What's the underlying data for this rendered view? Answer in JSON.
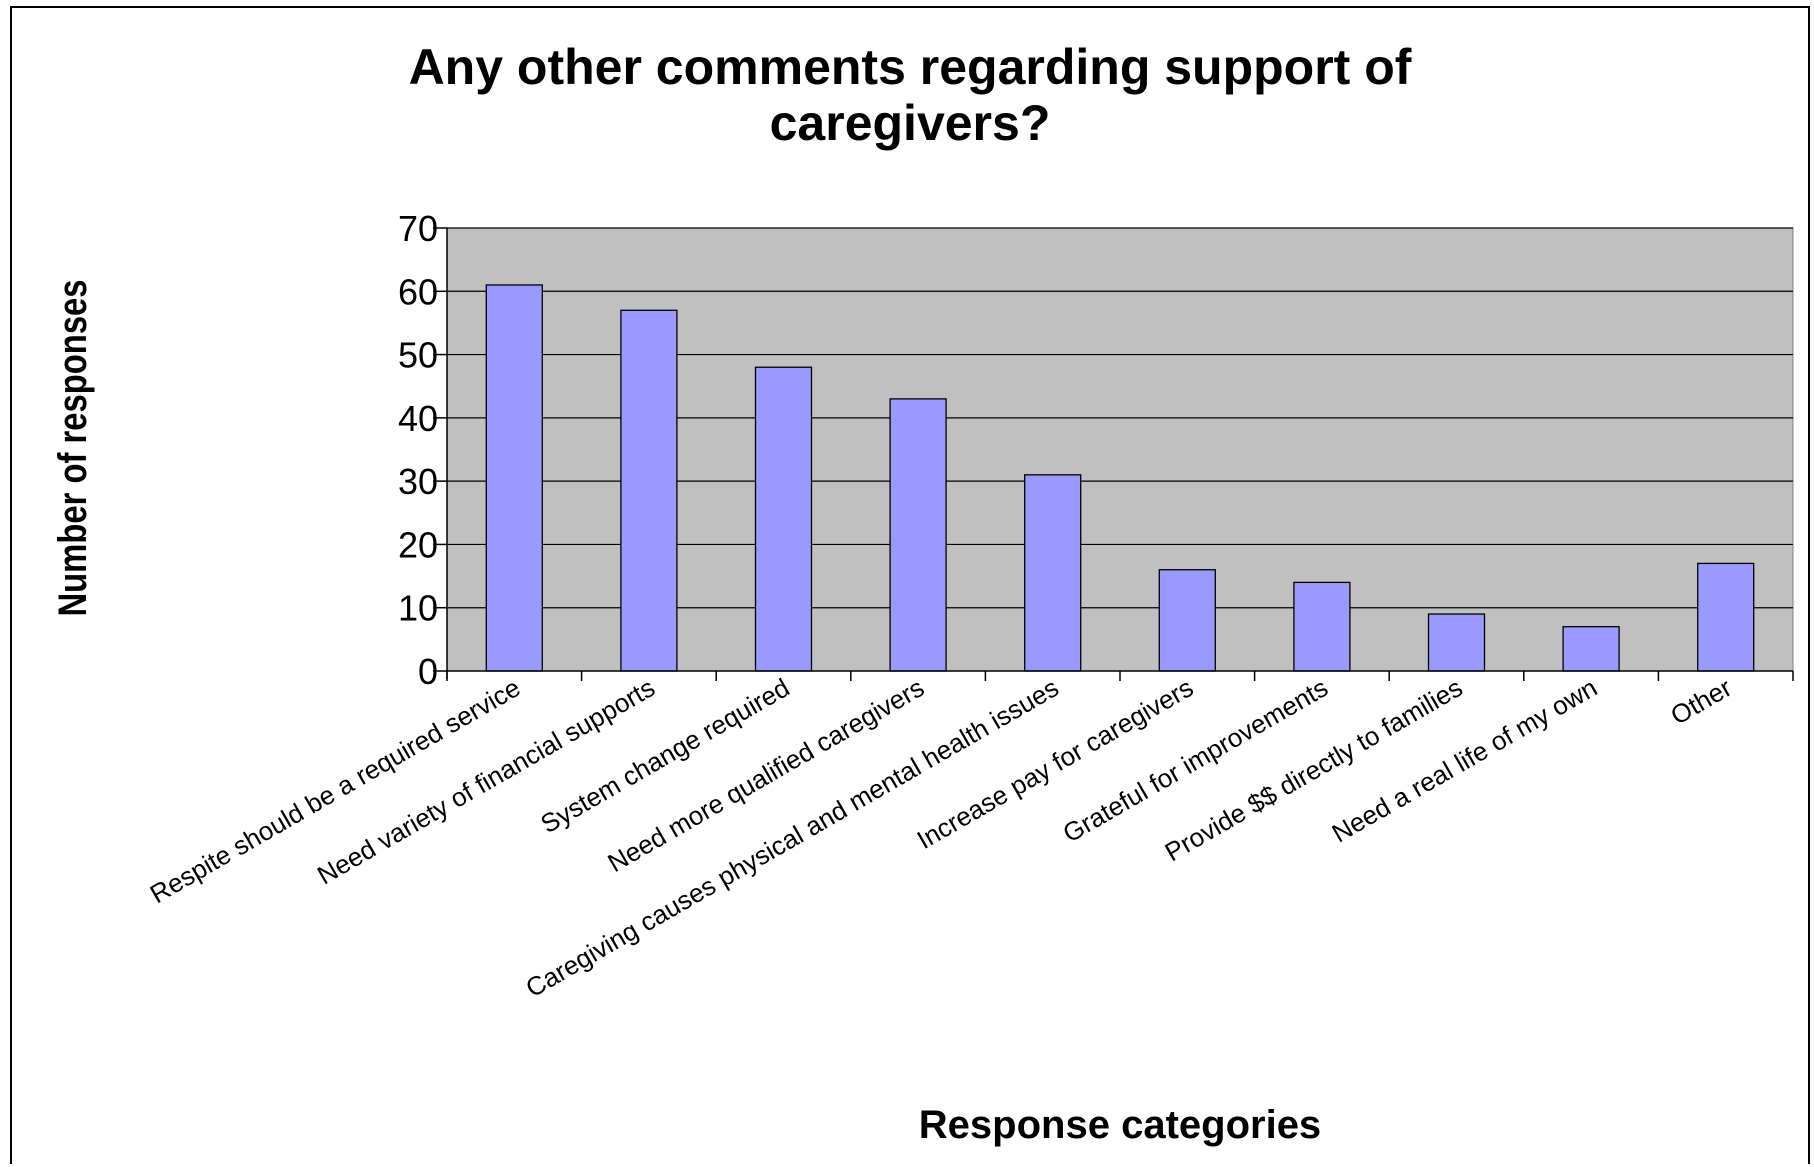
{
  "chart_data": {
    "type": "bar",
    "title_lines": [
      "Any other comments regarding support of",
      "caregivers?"
    ],
    "xlabel": "Response categories",
    "ylabel": "Number of responses",
    "ylim": [
      0,
      70
    ],
    "yticks": [
      0,
      10,
      20,
      30,
      40,
      50,
      60,
      70
    ],
    "grid": true,
    "legend": "none",
    "categories": [
      "Respite should be a required service",
      "Need variety of financial supports",
      "System change required",
      "Need more qualified caregivers",
      "Caregiving causes physical and mental health issues",
      "Increase pay for caregivers",
      "Grateful for improvements",
      "Provide $$ directly to families",
      "Need a real life of my own",
      "Other"
    ],
    "values": [
      61,
      57,
      48,
      43,
      31,
      16,
      14,
      9,
      7,
      17
    ],
    "colors": {
      "bar": "#9999ff",
      "plot_background": "#c0c0c0",
      "gridline": "#000000"
    }
  }
}
